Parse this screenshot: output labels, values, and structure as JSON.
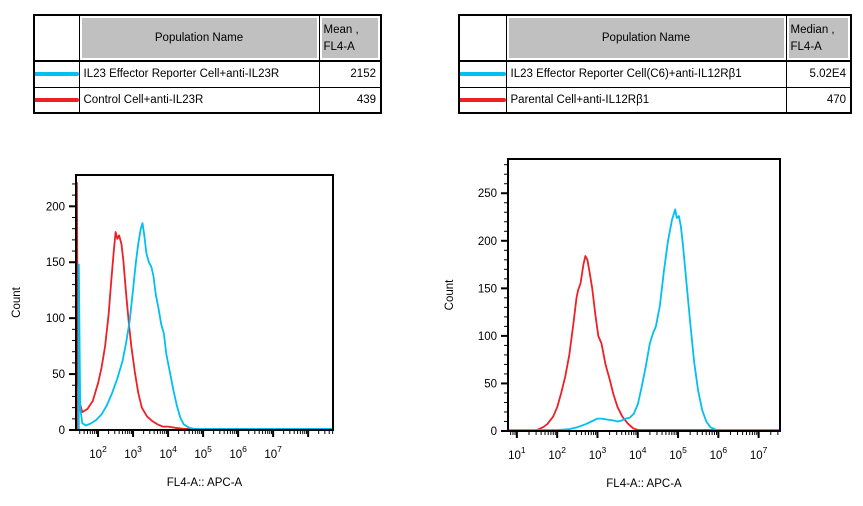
{
  "tables": [
    {
      "header": {
        "population": "Population Name",
        "stat_line1": "Mean ,",
        "stat_line2": "FL4-A"
      },
      "rows": [
        {
          "color": "#00BFF3",
          "name": "IL23 Effector Reporter Cell+anti-IL23R",
          "value": "2152"
        },
        {
          "color": "#ED2024",
          "name": "Control Cell+anti-IL23R",
          "value": "439"
        }
      ]
    },
    {
      "header": {
        "population": "Population Name",
        "stat_line1": "Median ,",
        "stat_line2": "FL4-A"
      },
      "rows": [
        {
          "color": "#00BFF3",
          "name": "IL23 Effector Reporter Cell(C6)+anti-IL12Rβ1",
          "value": "5.02E4"
        },
        {
          "color": "#ED2024",
          "name": "Parental Cell+anti-IL12Rβ1",
          "value": "470"
        }
      ]
    }
  ],
  "colors": {
    "cyan": "#00BFF3",
    "red": "#ED2024",
    "header_gray": "#C0C0C0",
    "axis": "#000000"
  },
  "chart_data": [
    {
      "type": "line",
      "title": "",
      "xlabel": "FL4-A:: APC-A",
      "ylabel": "Count",
      "x_scale": "log10",
      "x_log_range": [
        1.37,
        8.71
      ],
      "x_labeled_decades": [
        2,
        3,
        4,
        5,
        6,
        7
      ],
      "y_range": [
        0,
        228
      ],
      "y_major_ticks": [
        0,
        50,
        100,
        150,
        200
      ],
      "y_minor_step": 10,
      "grid": false,
      "legend_position": "table-above",
      "series": [
        {
          "name": "Control Cell+anti-IL23R",
          "color": "#ED2024",
          "points": [
            [
              1.395,
              0
            ],
            [
              1.395,
              221
            ],
            [
              1.42,
              60
            ],
            [
              1.47,
              25
            ],
            [
              1.55,
              16
            ],
            [
              1.7,
              19
            ],
            [
              1.85,
              26
            ],
            [
              2.0,
              42
            ],
            [
              2.1,
              56
            ],
            [
              2.2,
              75
            ],
            [
              2.3,
              103
            ],
            [
              2.38,
              135
            ],
            [
              2.45,
              160
            ],
            [
              2.5,
              177
            ],
            [
              2.55,
              171
            ],
            [
              2.6,
              174
            ],
            [
              2.67,
              166
            ],
            [
              2.72,
              152
            ],
            [
              2.8,
              122
            ],
            [
              2.88,
              95
            ],
            [
              2.95,
              75
            ],
            [
              3.05,
              52
            ],
            [
              3.15,
              33
            ],
            [
              3.25,
              20
            ],
            [
              3.4,
              12
            ],
            [
              3.55,
              8
            ],
            [
              3.7,
              5
            ],
            [
              3.85,
              3
            ],
            [
              4.0,
              3
            ],
            [
              4.2,
              2
            ],
            [
              4.45,
              1
            ],
            [
              8.71,
              1
            ]
          ]
        },
        {
          "name": "IL23 Effector Reporter Cell+anti-IL23R",
          "color": "#00BFF3",
          "points": [
            [
              1.45,
              0
            ],
            [
              1.45,
              148
            ],
            [
              1.49,
              20
            ],
            [
              1.55,
              6
            ],
            [
              1.65,
              4
            ],
            [
              1.8,
              6
            ],
            [
              1.95,
              9
            ],
            [
              2.1,
              14
            ],
            [
              2.25,
              22
            ],
            [
              2.4,
              33
            ],
            [
              2.55,
              46
            ],
            [
              2.7,
              62
            ],
            [
              2.8,
              78
            ],
            [
              2.9,
              97
            ],
            [
              3.0,
              126
            ],
            [
              3.08,
              150
            ],
            [
              3.15,
              167
            ],
            [
              3.22,
              180
            ],
            [
              3.27,
              185
            ],
            [
              3.32,
              174
            ],
            [
              3.38,
              158
            ],
            [
              3.45,
              150
            ],
            [
              3.52,
              146
            ],
            [
              3.58,
              138
            ],
            [
              3.65,
              121
            ],
            [
              3.72,
              110
            ],
            [
              3.8,
              95
            ],
            [
              3.88,
              86
            ],
            [
              3.95,
              68
            ],
            [
              4.05,
              52
            ],
            [
              4.15,
              36
            ],
            [
              4.25,
              22
            ],
            [
              4.35,
              11
            ],
            [
              4.45,
              5
            ],
            [
              4.6,
              2
            ],
            [
              4.75,
              1
            ],
            [
              8.71,
              1
            ]
          ]
        }
      ]
    },
    {
      "type": "line",
      "title": "",
      "xlabel": "FL4-A:: APC-A",
      "ylabel": "Count",
      "x_scale": "log10",
      "x_log_range": [
        0.78,
        7.53
      ],
      "x_labeled_decades": [
        1,
        2,
        3,
        4,
        5,
        6,
        7
      ],
      "y_range": [
        0,
        286
      ],
      "y_major_ticks": [
        0,
        50,
        100,
        150,
        200,
        250
      ],
      "y_minor_step": 10,
      "grid": false,
      "legend_position": "table-above",
      "series": [
        {
          "name": "Parental Cell+anti-IL12Rβ1",
          "color": "#ED2024",
          "points": [
            [
              0.8,
              0
            ],
            [
              1.45,
              0
            ],
            [
              1.55,
              2
            ],
            [
              1.65,
              4
            ],
            [
              1.75,
              7
            ],
            [
              1.9,
              15
            ],
            [
              2.0,
              25
            ],
            [
              2.1,
              40
            ],
            [
              2.2,
              57
            ],
            [
              2.3,
              80
            ],
            [
              2.4,
              112
            ],
            [
              2.48,
              140
            ],
            [
              2.52,
              148
            ],
            [
              2.58,
              155
            ],
            [
              2.65,
              175
            ],
            [
              2.7,
              184
            ],
            [
              2.75,
              180
            ],
            [
              2.8,
              168
            ],
            [
              2.87,
              150
            ],
            [
              2.95,
              122
            ],
            [
              3.02,
              100
            ],
            [
              3.1,
              92
            ],
            [
              3.2,
              70
            ],
            [
              3.3,
              55
            ],
            [
              3.4,
              38
            ],
            [
              3.5,
              25
            ],
            [
              3.62,
              15
            ],
            [
              3.75,
              8
            ],
            [
              3.88,
              3
            ],
            [
              4.0,
              1
            ],
            [
              7.53,
              1
            ]
          ]
        },
        {
          "name": "IL23 Effector Reporter Cell(C6)+anti-IL12Rβ1",
          "color": "#00BFF3",
          "points": [
            [
              0.8,
              1
            ],
            [
              2.0,
              1
            ],
            [
              2.3,
              2
            ],
            [
              2.5,
              4
            ],
            [
              2.7,
              7
            ],
            [
              2.85,
              10
            ],
            [
              3.0,
              13
            ],
            [
              3.1,
              13
            ],
            [
              3.25,
              12
            ],
            [
              3.4,
              11
            ],
            [
              3.5,
              10
            ],
            [
              3.6,
              11
            ],
            [
              3.7,
              13
            ],
            [
              3.8,
              14
            ],
            [
              3.9,
              18
            ],
            [
              4.0,
              28
            ],
            [
              4.1,
              47
            ],
            [
              4.2,
              68
            ],
            [
              4.3,
              92
            ],
            [
              4.38,
              103
            ],
            [
              4.45,
              110
            ],
            [
              4.55,
              132
            ],
            [
              4.65,
              168
            ],
            [
              4.75,
              200
            ],
            [
              4.85,
              222
            ],
            [
              4.93,
              233
            ],
            [
              4.97,
              224
            ],
            [
              5.02,
              226
            ],
            [
              5.07,
              215
            ],
            [
              5.12,
              196
            ],
            [
              5.2,
              160
            ],
            [
              5.3,
              115
            ],
            [
              5.4,
              72
            ],
            [
              5.5,
              42
            ],
            [
              5.6,
              22
            ],
            [
              5.7,
              10
            ],
            [
              5.8,
              4
            ],
            [
              5.95,
              1
            ],
            [
              7.53,
              1
            ]
          ]
        }
      ]
    }
  ]
}
